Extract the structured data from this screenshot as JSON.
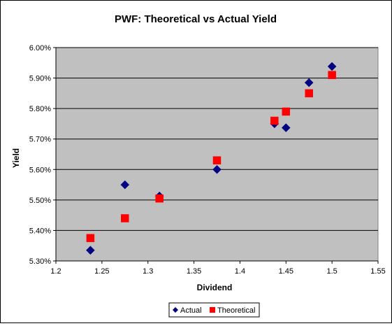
{
  "chart_data": {
    "type": "scatter",
    "title": "PWF: Theoretical vs Actual Yield",
    "xlabel": "Dividend",
    "ylabel": "Yield",
    "xlim": [
      1.2,
      1.55
    ],
    "ylim": [
      0.053,
      0.06
    ],
    "x_ticks": [
      "1.2",
      "1.25",
      "1.3",
      "1.35",
      "1.4",
      "1.45",
      "1.5",
      "1.55"
    ],
    "y_ticks": [
      "5.30%",
      "5.40%",
      "5.50%",
      "5.60%",
      "5.70%",
      "5.80%",
      "5.90%",
      "6.00%"
    ],
    "grid": "horizontal major gridlines",
    "legend_position": "bottom",
    "plot_area_color": "#c0c0c0",
    "series": [
      {
        "name": "Actual",
        "marker": "diamond",
        "color": "#000080",
        "points": [
          {
            "x": 1.2375,
            "y": 0.05335
          },
          {
            "x": 1.275,
            "y": 0.0555
          },
          {
            "x": 1.3125,
            "y": 0.05513
          },
          {
            "x": 1.375,
            "y": 0.056
          },
          {
            "x": 1.4375,
            "y": 0.0575
          },
          {
            "x": 1.45,
            "y": 0.05737
          },
          {
            "x": 1.475,
            "y": 0.05885
          },
          {
            "x": 1.5,
            "y": 0.05938
          }
        ]
      },
      {
        "name": "Theoretical",
        "marker": "square",
        "color": "#ff0000",
        "points": [
          {
            "x": 1.2375,
            "y": 0.05375
          },
          {
            "x": 1.275,
            "y": 0.0544
          },
          {
            "x": 1.3125,
            "y": 0.05505
          },
          {
            "x": 1.375,
            "y": 0.0563
          },
          {
            "x": 1.4375,
            "y": 0.0576
          },
          {
            "x": 1.45,
            "y": 0.0579
          },
          {
            "x": 1.475,
            "y": 0.0585
          },
          {
            "x": 1.5,
            "y": 0.0591
          }
        ]
      }
    ]
  }
}
